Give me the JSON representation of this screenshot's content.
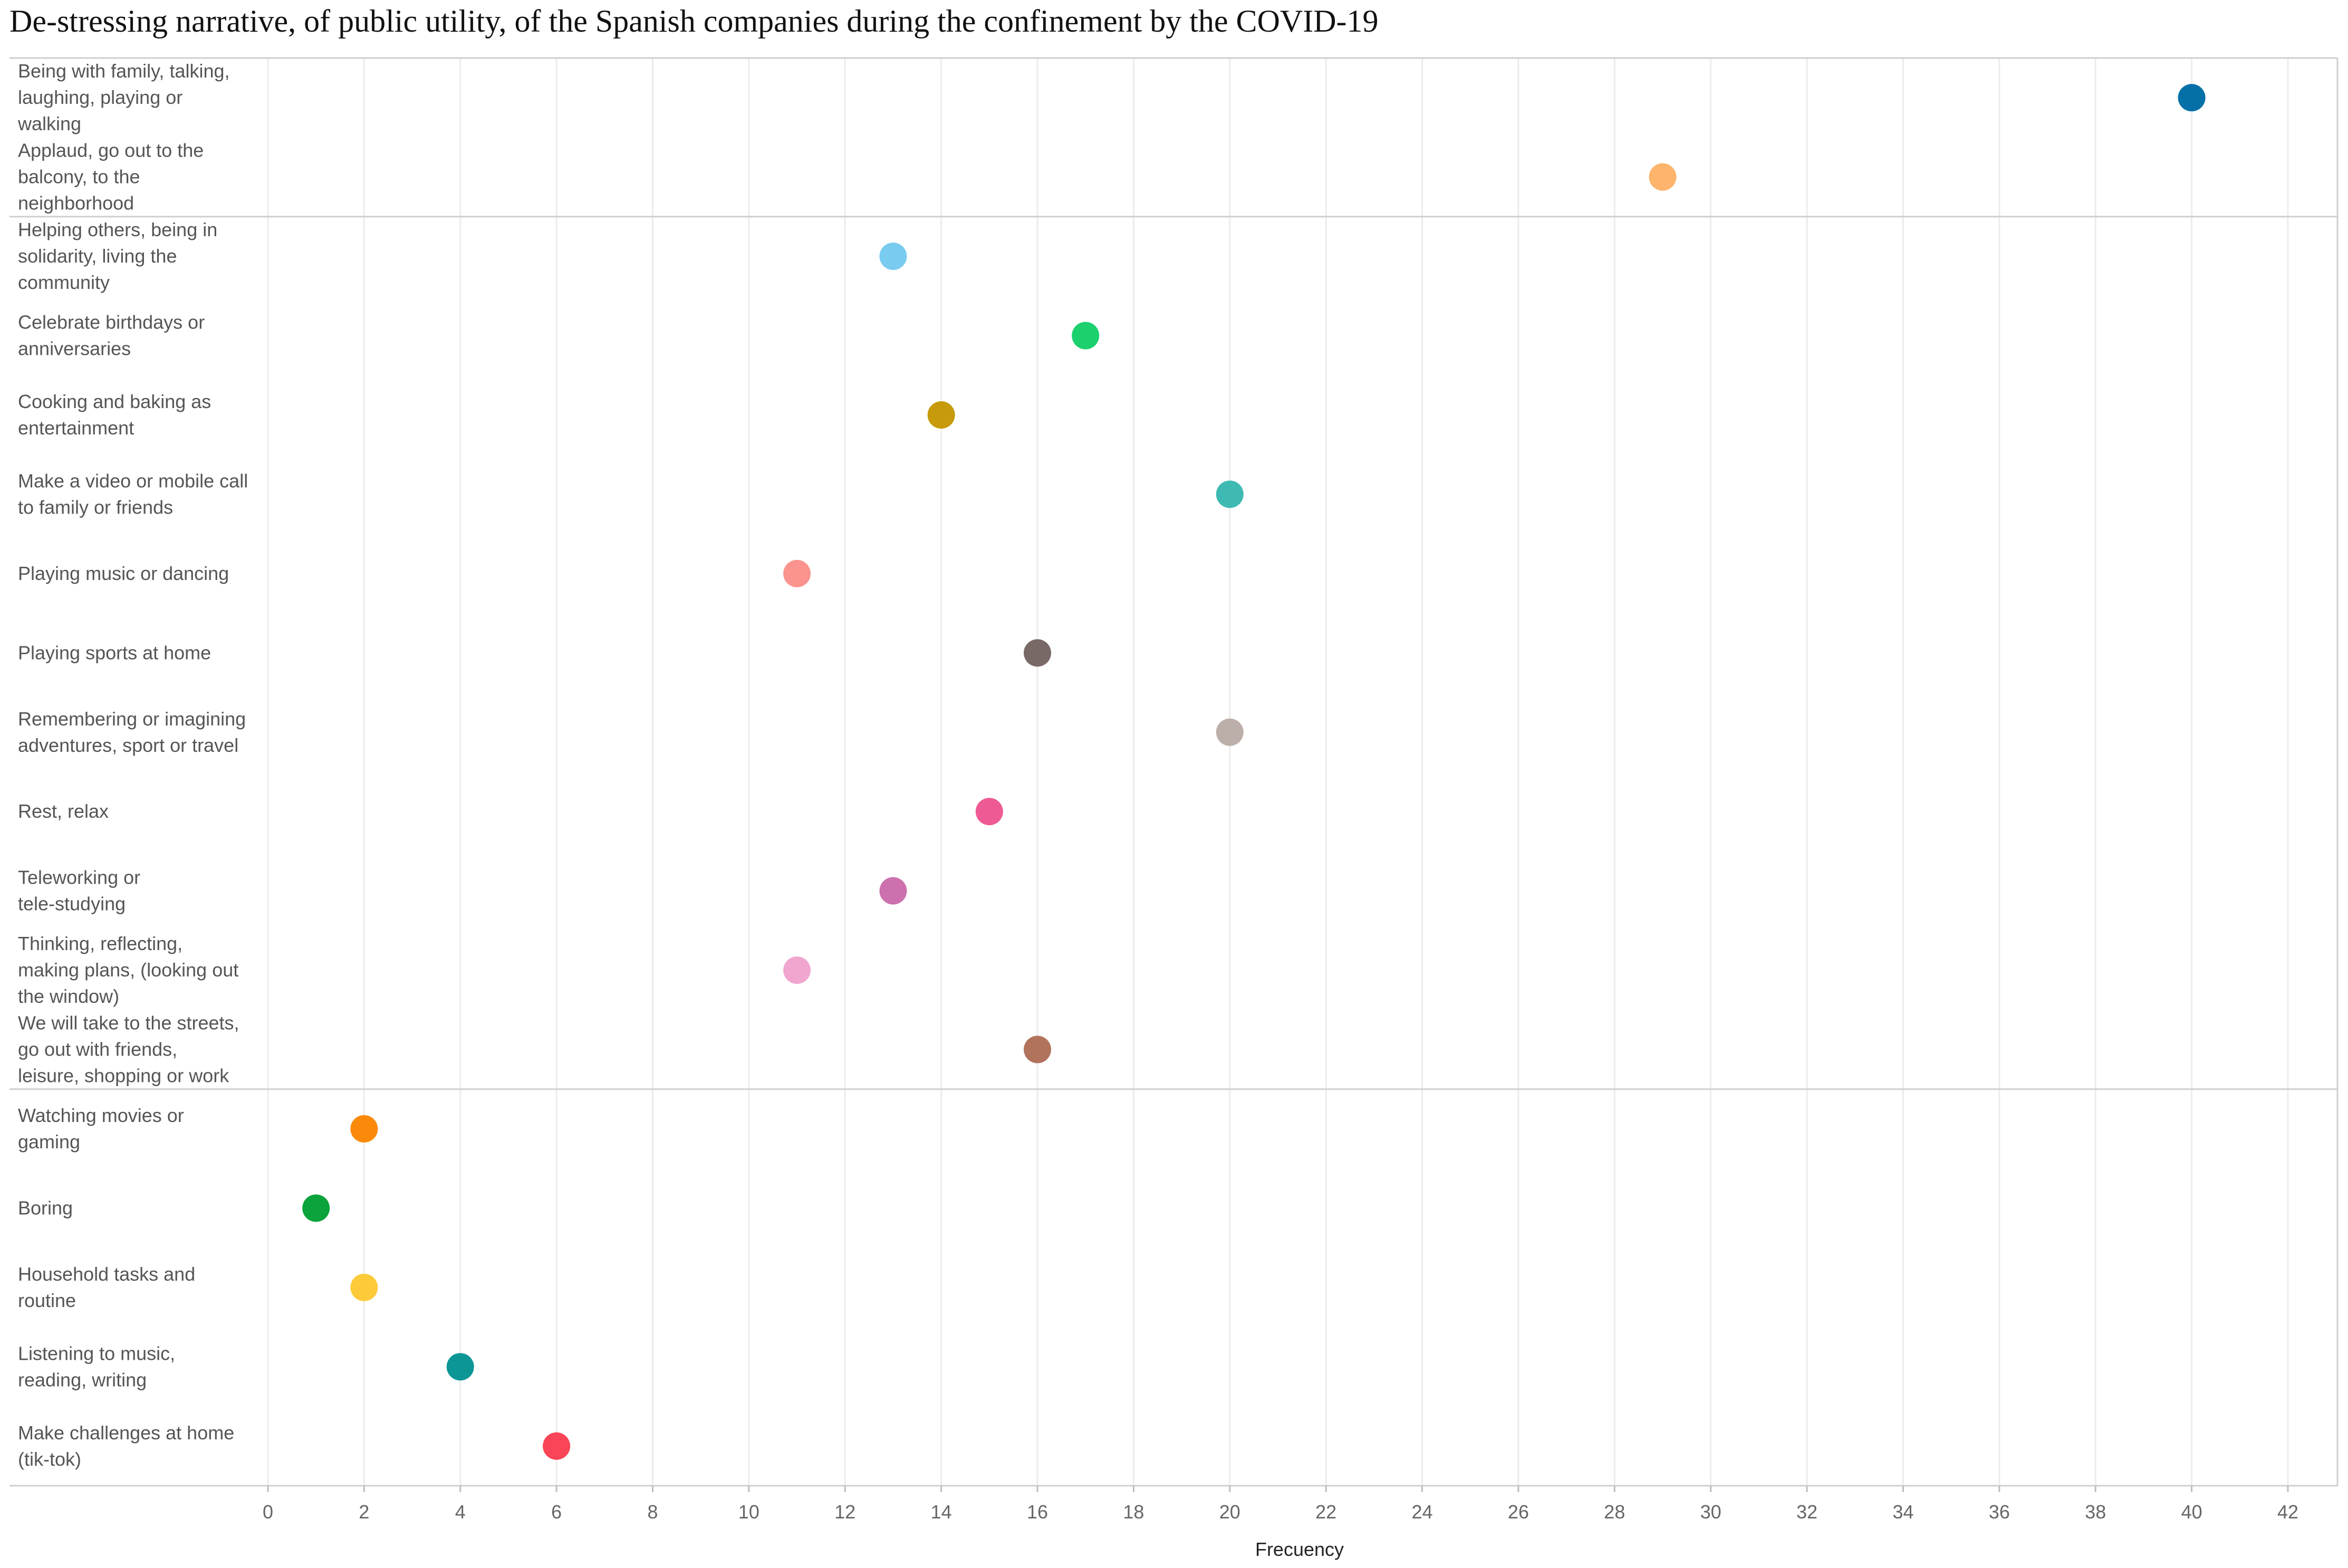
{
  "chart_data": {
    "type": "scatter",
    "title": "De-stressing narrative, of public utility, of the Spanish companies during the confinement by the COVID-19",
    "xlabel": "Frecuency",
    "ylabel": "",
    "xlim": [
      0,
      42
    ],
    "x_ticks": [
      0,
      2,
      4,
      6,
      8,
      10,
      12,
      14,
      16,
      18,
      20,
      22,
      24,
      26,
      28,
      30,
      32,
      34,
      36,
      38,
      40,
      42
    ],
    "grid": true,
    "groups": [
      {
        "points": [
          {
            "label": [
              "Being with family, talking,",
              "laughing, playing or",
              "walking"
            ],
            "value": 40,
            "color": "#0570a8"
          },
          {
            "label": [
              "Applaud, go out to the",
              "balcony, to the",
              "neighborhood"
            ],
            "value": 29,
            "color": "#fdb46c"
          }
        ]
      },
      {
        "points": [
          {
            "label": [
              "Helping others, being in",
              "solidarity, living the",
              "community"
            ],
            "value": 13,
            "color": "#79cbef"
          },
          {
            "label": [
              "Celebrate birthdays or",
              "anniversaries"
            ],
            "value": 17,
            "color": "#1bd16e"
          },
          {
            "label": [
              "Cooking and baking as",
              "entertainment"
            ],
            "value": 14,
            "color": "#c69a0b"
          },
          {
            "label": [
              "Make a video or mobile call",
              "to family or friends"
            ],
            "value": 20,
            "color": "#3ebab3"
          },
          {
            "label": [
              "Playing music or dancing"
            ],
            "value": 11,
            "color": "#fb938e"
          },
          {
            "label": [
              "Playing sports at home"
            ],
            "value": 16,
            "color": "#786866"
          },
          {
            "label": [
              "Remembering or imagining",
              "adventures, sport or travel"
            ],
            "value": 20,
            "color": "#bcafa9"
          },
          {
            "label": [
              "Rest, relax"
            ],
            "value": 15,
            "color": "#ee5a94"
          },
          {
            "label": [
              "Teleworking or",
              "tele-studying"
            ],
            "value": 13,
            "color": "#cc71ad"
          },
          {
            "label": [
              "Thinking, reflecting,",
              "making plans, (looking out",
              "the window)"
            ],
            "value": 11,
            "color": "#f0a6cf"
          },
          {
            "label": [
              "We will take to the streets,",
              "go out with friends,",
              "leisure, shopping or work"
            ],
            "value": 16,
            "color": "#b1735c"
          }
        ]
      },
      {
        "points": [
          {
            "label": [
              "Watching movies or",
              "gaming"
            ],
            "value": 2,
            "color": "#fb8a0b"
          },
          {
            "label": [
              "Boring"
            ],
            "value": 1,
            "color": "#0aa33c"
          },
          {
            "label": [
              "Household tasks and",
              "routine"
            ],
            "value": 2,
            "color": "#fdcb3a"
          },
          {
            "label": [
              "Listening to music,",
              "reading, writing"
            ],
            "value": 4,
            "color": "#0c9696"
          },
          {
            "label": [
              "Make challenges at home",
              "(tik-tok)"
            ],
            "value": 6,
            "color": "#fa4457"
          }
        ]
      }
    ]
  }
}
